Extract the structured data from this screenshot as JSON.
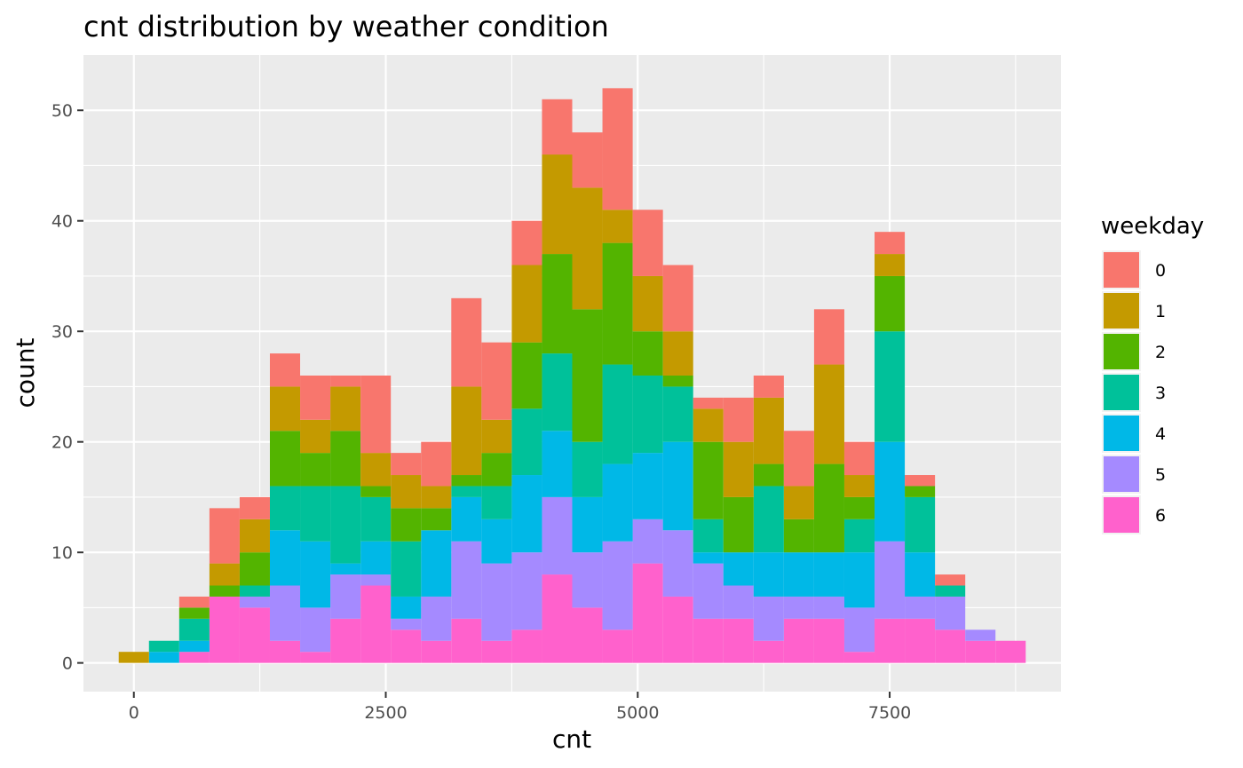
{
  "chart_data": {
    "type": "bar",
    "stacked": true,
    "title": "cnt distribution by weather condition",
    "xlabel": "cnt",
    "ylabel": "count",
    "xlim": [
      -500,
      9200
    ],
    "ylim": [
      -2.6,
      55
    ],
    "x_ticks": [
      0,
      2500,
      5000,
      7500
    ],
    "y_ticks": [
      0,
      10,
      20,
      30,
      40,
      50
    ],
    "x_tick_labels": [
      "0",
      "2500",
      "5000",
      "7500"
    ],
    "y_tick_labels": [
      "0",
      "10",
      "20",
      "30",
      "40",
      "50"
    ],
    "grid": true,
    "legend_position": "right",
    "legend_title": "weekday",
    "bin_start": -150,
    "bin_width": 300,
    "series": [
      {
        "name": "6",
        "color": "#FF61CC",
        "values": [
          0,
          0,
          1,
          6,
          5,
          2,
          1,
          4,
          7,
          3,
          2,
          4,
          2,
          3,
          8,
          5,
          3,
          9,
          6,
          4,
          4,
          2,
          4,
          4,
          1,
          4,
          4,
          3,
          2,
          2
        ]
      },
      {
        "name": "5",
        "color": "#A58AFF",
        "values": [
          0,
          0,
          0,
          0,
          1,
          5,
          4,
          4,
          1,
          1,
          4,
          7,
          7,
          7,
          7,
          5,
          8,
          4,
          6,
          5,
          3,
          4,
          2,
          2,
          4,
          7,
          2,
          3,
          1,
          0
        ]
      },
      {
        "name": "4",
        "color": "#00B8E7",
        "values": [
          0,
          1,
          1,
          0,
          0,
          5,
          6,
          1,
          3,
          2,
          6,
          4,
          4,
          7,
          6,
          5,
          7,
          6,
          8,
          1,
          3,
          4,
          4,
          4,
          5,
          9,
          4,
          0,
          0,
          0
        ]
      },
      {
        "name": "3",
        "color": "#00C19A",
        "values": [
          0,
          1,
          2,
          0,
          1,
          4,
          5,
          7,
          4,
          5,
          0,
          1,
          3,
          6,
          7,
          5,
          9,
          7,
          5,
          3,
          0,
          6,
          0,
          0,
          3,
          10,
          5,
          1,
          0,
          0
        ]
      },
      {
        "name": "2",
        "color": "#53B400",
        "values": [
          0,
          0,
          1,
          1,
          3,
          5,
          3,
          5,
          1,
          3,
          2,
          1,
          3,
          6,
          9,
          12,
          11,
          4,
          1,
          7,
          5,
          2,
          3,
          8,
          2,
          5,
          1,
          0,
          0,
          0
        ]
      },
      {
        "name": "1",
        "color": "#C49A00",
        "values": [
          1,
          0,
          0,
          2,
          3,
          4,
          3,
          4,
          3,
          3,
          2,
          8,
          3,
          7,
          9,
          11,
          3,
          5,
          4,
          3,
          5,
          6,
          3,
          9,
          2,
          2,
          0,
          0,
          0,
          0
        ]
      },
      {
        "name": "0",
        "color": "#F8766D",
        "values": [
          0,
          0,
          1,
          5,
          2,
          3,
          4,
          1,
          7,
          2,
          4,
          8,
          7,
          4,
          5,
          5,
          11,
          6,
          6,
          1,
          4,
          2,
          5,
          5,
          3,
          2,
          1,
          1,
          0,
          0
        ]
      }
    ]
  },
  "legend": {
    "title": "weekday",
    "items": [
      {
        "label": "0",
        "color": "#F8766D"
      },
      {
        "label": "1",
        "color": "#C49A00"
      },
      {
        "label": "2",
        "color": "#53B400"
      },
      {
        "label": "3",
        "color": "#00C19A"
      },
      {
        "label": "4",
        "color": "#00B8E7"
      },
      {
        "label": "5",
        "color": "#A58AFF"
      },
      {
        "label": "6",
        "color": "#FF61CC"
      }
    ]
  }
}
